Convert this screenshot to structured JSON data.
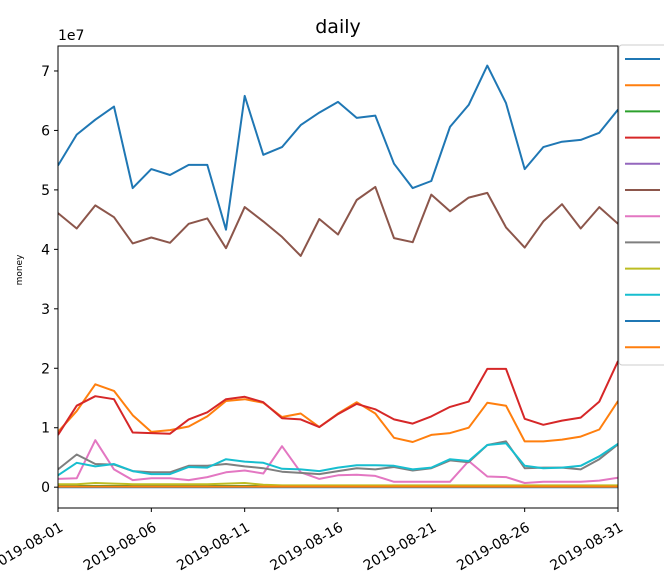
{
  "chart_data": {
    "type": "line",
    "title": "daily",
    "xlabel": "",
    "ylabel": "money",
    "y_offset_label": "1e7",
    "y_scale_factor": 10000000,
    "ylim": [
      -0.35,
      7.42
    ],
    "xlim": [
      "2019-08-01",
      "2019-08-31"
    ],
    "grid": false,
    "legend_placement": "upper-right (clipped, outside axes)",
    "x_tick_labels": [
      "2019-08-01",
      "2019-08-06",
      "2019-08-11",
      "2019-08-16",
      "2019-08-21",
      "2019-08-26",
      "2019-08-31"
    ],
    "y_tick_labels": [
      "0",
      "1",
      "2",
      "3",
      "4",
      "5",
      "6",
      "7"
    ],
    "x": [
      "2019-08-01",
      "2019-08-02",
      "2019-08-03",
      "2019-08-04",
      "2019-08-05",
      "2019-08-06",
      "2019-08-07",
      "2019-08-08",
      "2019-08-09",
      "2019-08-10",
      "2019-08-11",
      "2019-08-12",
      "2019-08-13",
      "2019-08-14",
      "2019-08-15",
      "2019-08-16",
      "2019-08-17",
      "2019-08-18",
      "2019-08-19",
      "2019-08-20",
      "2019-08-21",
      "2019-08-22",
      "2019-08-23",
      "2019-08-24",
      "2019-08-25",
      "2019-08-26",
      "2019-08-27",
      "2019-08-28",
      "2019-08-29",
      "2019-08-30",
      "2019-08-31"
    ],
    "series": [
      {
        "color": "#1f77b4",
        "values": [
          5.41,
          5.93,
          6.18,
          6.4,
          5.03,
          5.35,
          5.25,
          5.42,
          5.42,
          4.33,
          6.58,
          5.59,
          5.72,
          6.09,
          6.3,
          6.48,
          6.21,
          6.25,
          5.44,
          5.03,
          5.15,
          6.06,
          6.43,
          7.09,
          6.46,
          5.35,
          5.72,
          5.81,
          5.84,
          5.96,
          6.35
        ]
      },
      {
        "color": "#ff7f0e",
        "values": [
          0.93,
          1.28,
          1.73,
          1.62,
          1.21,
          0.93,
          0.96,
          1.02,
          1.19,
          1.45,
          1.48,
          1.42,
          1.18,
          1.24,
          1.01,
          1.24,
          1.43,
          1.24,
          0.83,
          0.76,
          0.88,
          0.91,
          1.0,
          1.42,
          1.37,
          0.77,
          0.77,
          0.8,
          0.85,
          0.97,
          1.45
        ]
      },
      {
        "color": "#2ca02c",
        "values": [
          0.02,
          0.02,
          0.02,
          0.02,
          0.02,
          0.02,
          0.02,
          0.02,
          0.02,
          0.02,
          0.02,
          0.02,
          0.02,
          0.02,
          0.02,
          0.02,
          0.02,
          0.02,
          0.02,
          0.02,
          0.02,
          0.02,
          0.02,
          0.02,
          0.02,
          0.02,
          0.02,
          0.02,
          0.02,
          0.02,
          0.02
        ]
      },
      {
        "color": "#d62728",
        "values": [
          0.88,
          1.37,
          1.53,
          1.48,
          0.92,
          0.91,
          0.9,
          1.14,
          1.26,
          1.48,
          1.52,
          1.43,
          1.16,
          1.14,
          1.01,
          1.23,
          1.4,
          1.31,
          1.14,
          1.07,
          1.19,
          1.35,
          1.44,
          1.99,
          1.99,
          1.15,
          1.05,
          1.12,
          1.17,
          1.44,
          2.12
        ]
      },
      {
        "color": "#9467bd",
        "values": [
          0.01,
          0.01,
          0.01,
          0.01,
          0.01,
          0.01,
          0.01,
          0.01,
          0.01,
          0.01,
          0.01,
          0.01,
          0.01,
          0.01,
          0.01,
          0.01,
          0.01,
          0.01,
          0.01,
          0.01,
          0.01,
          0.01,
          0.01,
          0.01,
          0.01,
          0.01,
          0.01,
          0.01,
          0.01,
          0.01,
          0.01
        ]
      },
      {
        "color": "#8c564b",
        "values": [
          4.61,
          4.35,
          4.74,
          4.54,
          4.1,
          4.2,
          4.11,
          4.43,
          4.52,
          4.02,
          4.71,
          4.47,
          4.21,
          3.89,
          4.51,
          4.25,
          4.83,
          5.05,
          4.19,
          4.12,
          4.92,
          4.64,
          4.87,
          4.95,
          4.37,
          4.03,
          4.47,
          4.76,
          4.35,
          4.71,
          4.43
        ]
      },
      {
        "color": "#e377c2",
        "values": [
          0.14,
          0.15,
          0.79,
          0.3,
          0.12,
          0.15,
          0.15,
          0.12,
          0.17,
          0.25,
          0.28,
          0.23,
          0.69,
          0.25,
          0.14,
          0.2,
          0.21,
          0.19,
          0.09,
          0.09,
          0.09,
          0.09,
          0.44,
          0.18,
          0.17,
          0.07,
          0.09,
          0.09,
          0.09,
          0.11,
          0.16
        ]
      },
      {
        "color": "#7f7f7f",
        "values": [
          0.3,
          0.55,
          0.39,
          0.38,
          0.27,
          0.25,
          0.25,
          0.36,
          0.36,
          0.39,
          0.35,
          0.32,
          0.26,
          0.24,
          0.22,
          0.27,
          0.32,
          0.3,
          0.34,
          0.28,
          0.32,
          0.45,
          0.42,
          0.71,
          0.77,
          0.32,
          0.33,
          0.33,
          0.3,
          0.47,
          0.72
        ]
      },
      {
        "color": "#bcbd22",
        "values": [
          0.05,
          0.05,
          0.07,
          0.06,
          0.05,
          0.05,
          0.05,
          0.05,
          0.05,
          0.06,
          0.07,
          0.04,
          0.03,
          0.03,
          0.03,
          0.03,
          0.03,
          0.03,
          0.03,
          0.03,
          0.03,
          0.03,
          0.03,
          0.03,
          0.03,
          0.03,
          0.03,
          0.03,
          0.03,
          0.03,
          0.03
        ]
      },
      {
        "color": "#17becf",
        "values": [
          0.2,
          0.41,
          0.35,
          0.39,
          0.27,
          0.22,
          0.22,
          0.34,
          0.33,
          0.47,
          0.43,
          0.41,
          0.31,
          0.3,
          0.27,
          0.33,
          0.37,
          0.37,
          0.36,
          0.3,
          0.33,
          0.47,
          0.44,
          0.71,
          0.74,
          0.36,
          0.32,
          0.33,
          0.36,
          0.52,
          0.73
        ]
      },
      {
        "color": "#1f77b4",
        "values": [
          0.0,
          0.0,
          0.0,
          0.0,
          0.0,
          0.0,
          0.0,
          0.0,
          0.0,
          0.0,
          0.0,
          0.0,
          0.0,
          0.0,
          0.0,
          0.0,
          0.0,
          0.0,
          0.0,
          0.0,
          0.0,
          0.0,
          0.0,
          0.0,
          0.0,
          0.0,
          0.0,
          0.0,
          0.0,
          0.0,
          0.0
        ]
      },
      {
        "color": "#ff7f0e",
        "values": [
          0.01,
          0.01,
          0.01,
          0.01,
          0.01,
          0.01,
          0.01,
          0.01,
          0.01,
          0.01,
          0.01,
          0.01,
          0.01,
          0.01,
          0.01,
          0.01,
          0.01,
          0.01,
          0.01,
          0.01,
          0.01,
          0.01,
          0.01,
          0.01,
          0.01,
          0.01,
          0.01,
          0.01,
          0.01,
          0.01,
          0.01
        ]
      }
    ]
  }
}
